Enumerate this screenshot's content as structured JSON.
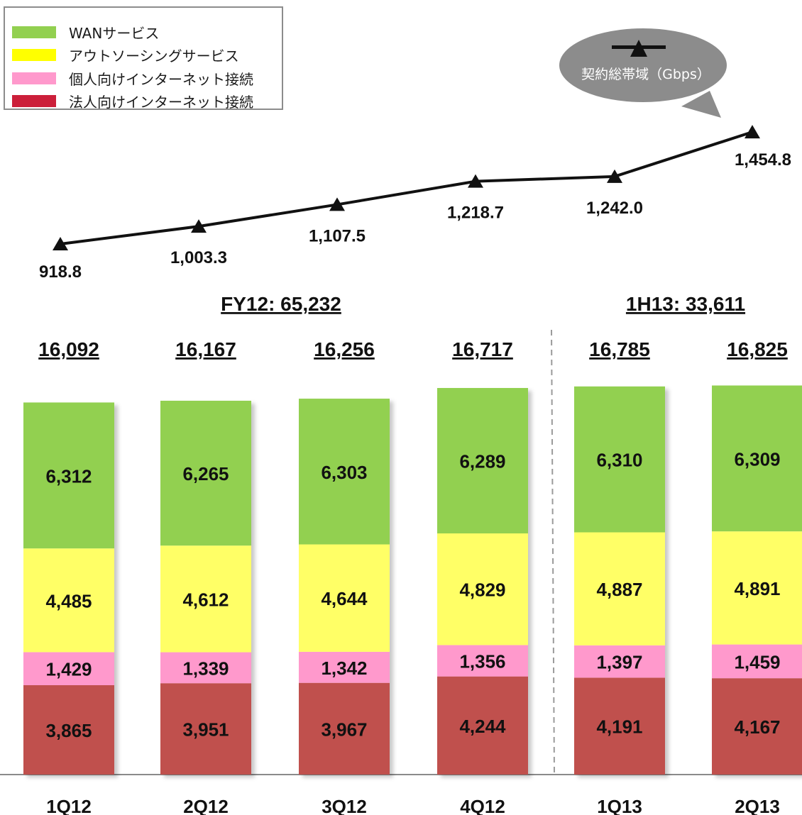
{
  "colors": {
    "wan": "#92d050",
    "outsourcing": "#ffff66",
    "personal": "#ff99cc",
    "corporate": "#c0504d",
    "corporate_legend": "#cc1f3a",
    "line": "#111111",
    "bubble": "#8c8c8c"
  },
  "legend": {
    "items": [
      {
        "label": "WANサービス",
        "key": "wan"
      },
      {
        "label": "アウトソーシングサービス",
        "key": "outsourcing"
      },
      {
        "label": "個人向けインターネット接続",
        "key": "personal"
      },
      {
        "label": "法人向けインターネット接続",
        "key": "corporate_legend"
      }
    ]
  },
  "bandwidth_callout": {
    "label": "契約総帯域（Gbps）",
    "marker_icon": "triangle-marker-icon"
  },
  "period_labels": [
    {
      "label": "FY12: 65,232"
    },
    {
      "label": "1H13: 33,611"
    }
  ],
  "chart_data": [
    {
      "type": "line",
      "series": [
        {
          "name": "契約総帯域（Gbps）",
          "values": [
            918.8,
            1003.3,
            1107.5,
            1218.7,
            1242.0,
            1454.8
          ],
          "value_labels": [
            "918.8",
            "1,003.3",
            "1,107.5",
            "1,218.7",
            "1,242.0",
            "1,454.8"
          ]
        }
      ],
      "categories": [
        "1Q12",
        "2Q12",
        "3Q12",
        "4Q12",
        "1Q13",
        "2Q13"
      ]
    },
    {
      "type": "bar",
      "stacked": true,
      "categories": [
        "1Q12",
        "2Q12",
        "3Q12",
        "4Q12",
        "1Q13",
        "2Q13"
      ],
      "totals": [
        "16,092",
        "16,167",
        "16,256",
        "16,717",
        "16,785",
        "16,825"
      ],
      "total_values": [
        16092,
        16167,
        16256,
        16717,
        16785,
        16825
      ],
      "series": [
        {
          "name": "法人向けインターネット接続",
          "key": "corporate",
          "values": [
            3865,
            3951,
            3967,
            4244,
            4191,
            4167
          ],
          "labels": [
            "3,865",
            "3,951",
            "3,967",
            "4,244",
            "4,191",
            "4,167"
          ]
        },
        {
          "name": "個人向けインターネット接続",
          "key": "personal",
          "values": [
            1429,
            1339,
            1342,
            1356,
            1397,
            1459
          ],
          "labels": [
            "1,429",
            "1,339",
            "1,342",
            "1,356",
            "1,397",
            "1,459"
          ]
        },
        {
          "name": "アウトソーシングサービス",
          "key": "outsourcing",
          "values": [
            4485,
            4612,
            4644,
            4829,
            4887,
            4891
          ],
          "labels": [
            "4,485",
            "4,612",
            "4,644",
            "4,829",
            "4,887",
            "4,891"
          ]
        },
        {
          "name": "WANサービス",
          "key": "wan",
          "values": [
            6312,
            6265,
            6303,
            6289,
            6310,
            6309
          ],
          "labels": [
            "6,312",
            "6,265",
            "6,303",
            "6,289",
            "6,310",
            "6,309"
          ]
        }
      ]
    }
  ]
}
